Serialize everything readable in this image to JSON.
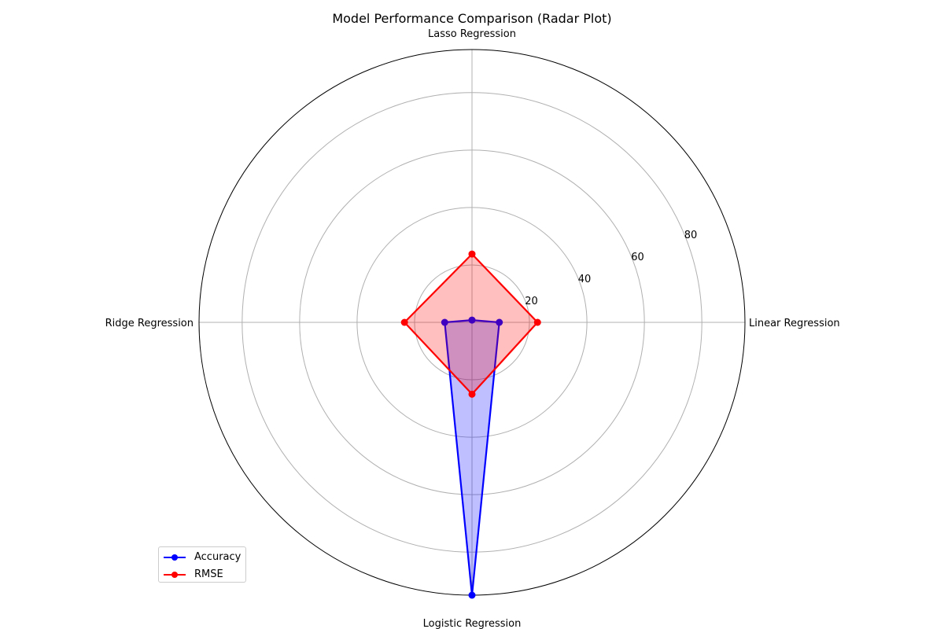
{
  "chart_data": {
    "type": "radar",
    "title": "Model Performance Comparison (Radar Plot)",
    "categories": [
      "Linear Regression",
      "Lasso Regression",
      "Ridge Regression",
      "Logistic Regression"
    ],
    "radial_ticks": [
      20,
      40,
      60,
      80
    ],
    "rlim": [
      0,
      95
    ],
    "grid": true,
    "legend_position": "lower-left",
    "series": [
      {
        "name": "Accuracy",
        "values": [
          9.5,
          0.8,
          9.5,
          95
        ],
        "color": "#0000ff",
        "fill": "#0000ff"
      },
      {
        "name": "RMSE",
        "values": [
          22.8,
          23.8,
          23.5,
          25
        ],
        "color": "#ff0000",
        "fill": "#ff0000"
      }
    ]
  }
}
